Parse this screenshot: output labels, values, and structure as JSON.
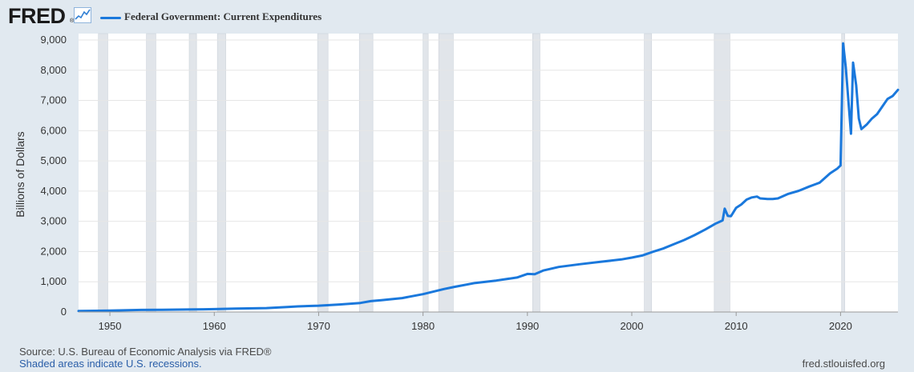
{
  "header": {
    "logo_text": "FRED",
    "logo_reg": "®",
    "series_name": "Federal Government: Current Expenditures"
  },
  "footer": {
    "source": "Source: U.S. Bureau of Economic Analysis via FRED®",
    "recession_note": "Shaded areas indicate U.S. recessions.",
    "url": "fred.stlouisfed.org"
  },
  "colors": {
    "background": "#e1e9f0",
    "plot_background": "#ffffff",
    "series": "#1a78dc",
    "recession": "#e1e5ea",
    "gridline": "#e6e6e6"
  },
  "chart_data": {
    "type": "line",
    "title": "",
    "xlabel": "",
    "ylabel": "Billions of Dollars",
    "xlim": [
      1947.0,
      2025.5
    ],
    "ylim": [
      0,
      9000
    ],
    "yticks": [
      0,
      1000,
      2000,
      3000,
      4000,
      5000,
      6000,
      7000,
      8000,
      9000
    ],
    "ytick_labels": [
      "0",
      "1,000",
      "2,000",
      "3,000",
      "4,000",
      "5,000",
      "6,000",
      "7,000",
      "8,000",
      "9,000"
    ],
    "xticks": [
      1950,
      1960,
      1970,
      1980,
      1990,
      2000,
      2010,
      2020
    ],
    "xtick_labels": [
      "1950",
      "1960",
      "1970",
      "1980",
      "1990",
      "2000",
      "2010",
      "2020"
    ],
    "grid": true,
    "legend_position": "top-left",
    "recessions": [
      [
        1948.9,
        1949.8
      ],
      [
        1953.5,
        1954.4
      ],
      [
        1957.6,
        1958.3
      ],
      [
        1960.3,
        1961.1
      ],
      [
        1969.9,
        1970.9
      ],
      [
        1973.9,
        1975.2
      ],
      [
        1980.0,
        1980.5
      ],
      [
        1981.5,
        1982.9
      ],
      [
        1990.5,
        1991.2
      ],
      [
        2001.2,
        2001.9
      ],
      [
        2007.9,
        2009.4
      ],
      [
        2020.1,
        2020.4
      ]
    ],
    "series": [
      {
        "name": "Federal Government: Current Expenditures",
        "points": [
          [
            1947.0,
            35
          ],
          [
            1950.0,
            45
          ],
          [
            1953.0,
            70
          ],
          [
            1955.0,
            75
          ],
          [
            1958.0,
            85
          ],
          [
            1960.0,
            95
          ],
          [
            1962.0,
            110
          ],
          [
            1965.0,
            130
          ],
          [
            1967.0,
            165
          ],
          [
            1968.0,
            185
          ],
          [
            1970.0,
            210
          ],
          [
            1972.0,
            250
          ],
          [
            1974.0,
            300
          ],
          [
            1975.0,
            360
          ],
          [
            1976.0,
            390
          ],
          [
            1978.0,
            460
          ],
          [
            1980.0,
            590
          ],
          [
            1982.0,
            760
          ],
          [
            1983.0,
            830
          ],
          [
            1985.0,
            960
          ],
          [
            1987.0,
            1040
          ],
          [
            1989.0,
            1140
          ],
          [
            1990.0,
            1260
          ],
          [
            1990.7,
            1250
          ],
          [
            1991.5,
            1370
          ],
          [
            1993.0,
            1490
          ],
          [
            1995.0,
            1580
          ],
          [
            1997.0,
            1660
          ],
          [
            1999.0,
            1740
          ],
          [
            2000.0,
            1800
          ],
          [
            2001.0,
            1870
          ],
          [
            2002.0,
            1990
          ],
          [
            2003.0,
            2100
          ],
          [
            2004.0,
            2240
          ],
          [
            2005.0,
            2380
          ],
          [
            2006.0,
            2540
          ],
          [
            2007.0,
            2720
          ],
          [
            2008.0,
            2920
          ],
          [
            2008.7,
            3030
          ],
          [
            2008.9,
            3420
          ],
          [
            2009.2,
            3180
          ],
          [
            2009.5,
            3170
          ],
          [
            2010.0,
            3450
          ],
          [
            2010.5,
            3560
          ],
          [
            2011.0,
            3720
          ],
          [
            2011.5,
            3790
          ],
          [
            2012.0,
            3820
          ],
          [
            2012.3,
            3760
          ],
          [
            2013.0,
            3740
          ],
          [
            2013.5,
            3740
          ],
          [
            2014.0,
            3760
          ],
          [
            2015.0,
            3910
          ],
          [
            2016.0,
            4010
          ],
          [
            2017.0,
            4150
          ],
          [
            2018.0,
            4280
          ],
          [
            2019.0,
            4590
          ],
          [
            2019.7,
            4750
          ],
          [
            2020.0,
            4850
          ],
          [
            2020.25,
            8890
          ],
          [
            2020.5,
            8100
          ],
          [
            2021.0,
            5900
          ],
          [
            2021.2,
            8250
          ],
          [
            2021.5,
            7500
          ],
          [
            2021.75,
            6400
          ],
          [
            2022.0,
            6050
          ],
          [
            2022.5,
            6200
          ],
          [
            2023.0,
            6400
          ],
          [
            2023.5,
            6550
          ],
          [
            2024.0,
            6800
          ],
          [
            2024.5,
            7050
          ],
          [
            2025.0,
            7150
          ],
          [
            2025.5,
            7350
          ]
        ]
      }
    ]
  }
}
